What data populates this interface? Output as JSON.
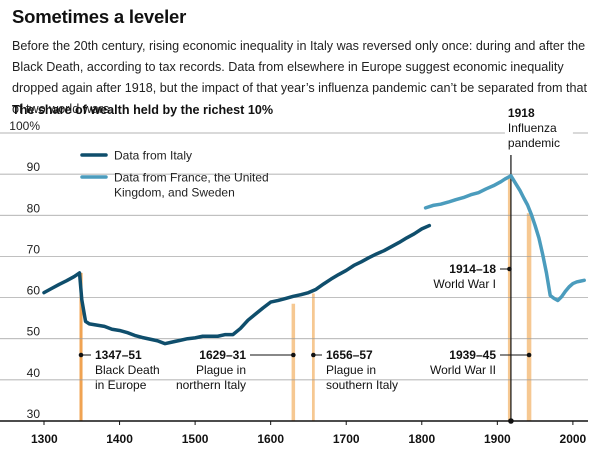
{
  "headline": "Sometimes a leveler",
  "subtitle": "Before the 20th century, rising economic inequality in Italy was reversed only once: during and after the Black Death, according to tax records. Data from elsewhere in Europe suggest economic inequality dropped again after 1918, but the impact of that year’s influenza pandemic can’t be separated from that of two world wars.",
  "colors": {
    "italy": "#0f4e6c",
    "europe": "#4b9cbd",
    "band": "#f6c892",
    "band_dark": "#f0a352"
  },
  "chart_data": {
    "type": "line",
    "title": "The share of wealth held by the richest 10%",
    "xlim": [
      1300,
      2020
    ],
    "ylim": [
      30,
      100
    ],
    "x_ticks": [
      "1300",
      "1400",
      "1500",
      "1600",
      "1700",
      "1800",
      "1900",
      "2000"
    ],
    "y_ticks": [
      "100%",
      "90",
      "80",
      "70",
      "60",
      "50",
      "40",
      "30"
    ],
    "legend": {
      "placement": "top-left",
      "italy_label": "Data from Italy",
      "europe_label_line1": "Data from France, the United",
      "europe_label_line2": "Kingdom, and Sweden"
    },
    "series": [
      {
        "name": "Data from Italy",
        "key": "italy",
        "x": [
          1300,
          1310,
          1320,
          1330,
          1340,
          1347,
          1350,
          1355,
          1360,
          1370,
          1380,
          1390,
          1400,
          1410,
          1420,
          1430,
          1440,
          1450,
          1460,
          1470,
          1480,
          1490,
          1500,
          1510,
          1520,
          1530,
          1540,
          1550,
          1560,
          1570,
          1580,
          1590,
          1600,
          1610,
          1620,
          1630,
          1640,
          1650,
          1660,
          1670,
          1680,
          1690,
          1700,
          1710,
          1720,
          1730,
          1740,
          1750,
          1760,
          1770,
          1780,
          1790,
          1800,
          1810
        ],
        "y": [
          61.2,
          62.2,
          63.2,
          64.1,
          65.1,
          66.0,
          59.5,
          54.2,
          53.6,
          53.3,
          53.0,
          52.3,
          52.0,
          51.5,
          50.8,
          50.3,
          49.9,
          49.5,
          48.8,
          49.2,
          49.6,
          50.0,
          50.2,
          50.6,
          50.6,
          50.6,
          51.0,
          51.0,
          52.5,
          54.5,
          56.0,
          57.5,
          58.9,
          59.3,
          59.8,
          60.3,
          60.7,
          61.2,
          62.0,
          63.3,
          64.5,
          65.6,
          66.6,
          67.8,
          68.7,
          69.7,
          70.6,
          71.4,
          72.4,
          73.4,
          74.5,
          75.5,
          76.7,
          77.5
        ]
      },
      {
        "name": "Data from France, the United Kingdom, and Sweden",
        "key": "europe",
        "x": [
          1805,
          1815,
          1825,
          1835,
          1845,
          1855,
          1865,
          1875,
          1885,
          1895,
          1905,
          1910,
          1918,
          1925,
          1930,
          1935,
          1940,
          1945,
          1950,
          1955,
          1960,
          1965,
          1970,
          1975,
          1980,
          1985,
          1990,
          1995,
          2000,
          2005,
          2010,
          2015
        ],
        "y": [
          81.8,
          82.4,
          82.7,
          83.2,
          83.8,
          84.3,
          85.0,
          85.5,
          86.4,
          87.2,
          88.2,
          88.8,
          89.6,
          87.5,
          86.0,
          84.2,
          82.5,
          80.2,
          77.5,
          74.5,
          70.5,
          66.0,
          60.5,
          59.8,
          59.3,
          60.2,
          61.5,
          62.6,
          63.4,
          63.8,
          64.0,
          64.2
        ]
      }
    ],
    "events": [
      {
        "year_start": 1347,
        "year_end": 1351,
        "label_years": "1347–51",
        "label_line1": "Black Death",
        "label_line2": "in Europe",
        "peak": 66
      },
      {
        "year_start": 1629,
        "year_end": 1631,
        "label_years": "1629–31",
        "label_line1": "Plague in",
        "label_line2": "northern Italy",
        "peak": 58.5
      },
      {
        "year_start": 1656,
        "year_end": 1657,
        "label_years": "1656–57",
        "label_line1": "Plague in",
        "label_line2": "southern Italy",
        "peak": 61
      },
      {
        "year_start": 1914,
        "year_end": 1918,
        "label_years": "1914–18",
        "label_line1": "World War I",
        "label_line2": "",
        "peak": 89.5
      },
      {
        "year_start": 1939,
        "year_end": 1945,
        "label_years": "1939–45",
        "label_line1": "World War II",
        "label_line2": "",
        "peak": 80.5
      }
    ],
    "pandemic": {
      "year": 1918,
      "label_years": "1918",
      "label_line1": "Influenza",
      "label_line2": "pandemic"
    }
  }
}
